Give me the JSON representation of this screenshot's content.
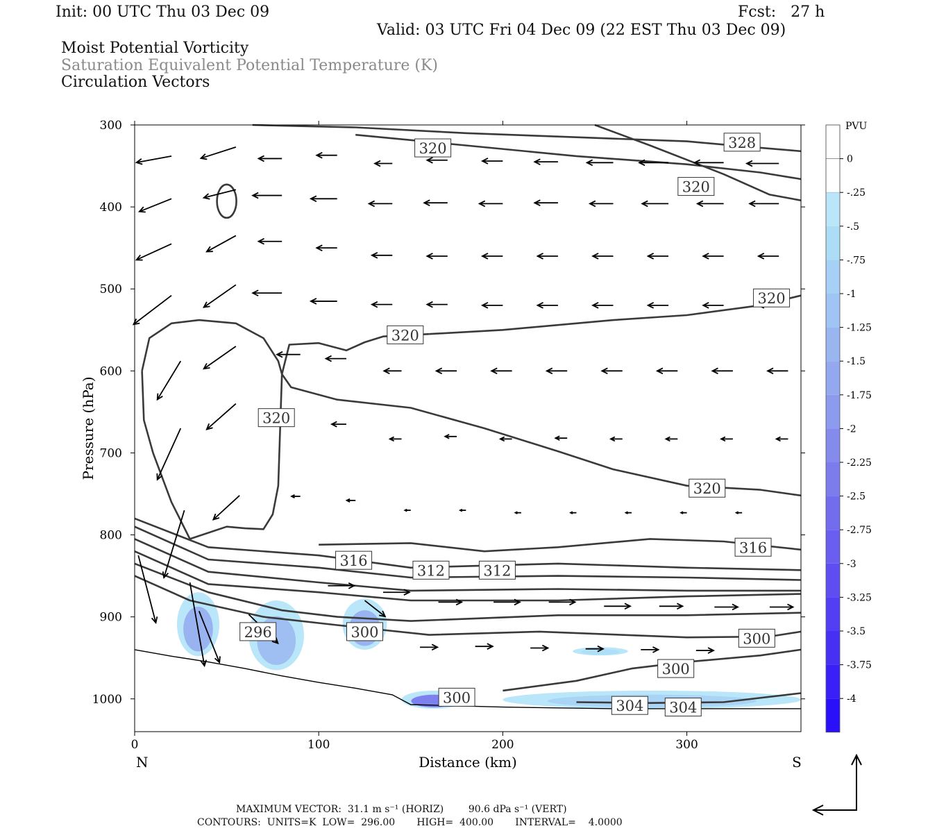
{
  "header": {
    "init": "Init: 00 UTC Thu 03 Dec 09",
    "fcst": "Fcst:   27 h",
    "valid": "Valid: 03 UTC Fri 04 Dec 09 (22 EST Thu 03 Dec 09)",
    "field1": "Moist Potential Vorticity",
    "field2": "Saturation Equivalent Potential Temperature (K)",
    "field3": "Circulation Vectors"
  },
  "footer": {
    "line1": "MAXIMUM VECTOR:  31.1 m s⁻¹ (HORIZ)        90.6 dPa s⁻¹ (VERT)",
    "line2": "CONTOURS:  UNITS=K  LOW=  296.00       HIGH=  400.00       INTERVAL=    4.0000"
  },
  "colorbar": {
    "unit": "PVU",
    "labels": [
      "0",
      "-.25",
      "-.5",
      "-.75",
      "-1",
      "-1.25",
      "-1.5",
      "-1.75",
      "-2",
      "-2.25",
      "-2.5",
      "-2.75",
      "-3",
      "-3.25",
      "-3.5",
      "-3.75",
      "-4"
    ],
    "colors": [
      "#ffffff",
      "#ffffff",
      "#b9e6f8",
      "#addcf7",
      "#a6d0f5",
      "#a0c4f3",
      "#9ab6f1",
      "#93a8ef",
      "#8c9bee",
      "#848bec",
      "#7c7ced",
      "#726ded",
      "#6a5ef0",
      "#5e4df1",
      "#533ff3",
      "#4630f4",
      "#3820f6",
      "#2a10f9"
    ]
  },
  "chart_data": {
    "type": "cross-section",
    "xlabel": "Distance (km)",
    "ylabel": "Pressure (hPa)",
    "x_ticks": [
      0,
      100,
      200,
      300
    ],
    "y_ticks": [
      300,
      400,
      500,
      600,
      700,
      800,
      900,
      1000
    ],
    "xlim": [
      0,
      362
    ],
    "ylim": [
      300,
      1040
    ],
    "end_labels": {
      "left": "N",
      "right": "S"
    },
    "contour_labels": [
      {
        "text": "320",
        "x": 162,
        "p": 328
      },
      {
        "text": "328",
        "x": 330,
        "p": 321
      },
      {
        "text": "320",
        "x": 305,
        "p": 375
      },
      {
        "text": "320",
        "x": 346,
        "p": 511
      },
      {
        "text": "320",
        "x": 147,
        "p": 556
      },
      {
        "text": "320",
        "x": 77,
        "p": 657
      },
      {
        "text": "320",
        "x": 311,
        "p": 743
      },
      {
        "text": "316",
        "x": 119,
        "p": 831
      },
      {
        "text": "312",
        "x": 161,
        "p": 843
      },
      {
        "text": "312",
        "x": 197,
        "p": 843
      },
      {
        "text": "316",
        "x": 336,
        "p": 815
      },
      {
        "text": "296",
        "x": 67,
        "p": 918
      },
      {
        "text": "300",
        "x": 125,
        "p": 918
      },
      {
        "text": "300",
        "x": 338,
        "p": 926
      },
      {
        "text": "300",
        "x": 294,
        "p": 963
      },
      {
        "text": "300",
        "x": 175,
        "p": 998
      },
      {
        "text": "304",
        "x": 269,
        "p": 1008
      },
      {
        "text": "304",
        "x": 298,
        "p": 1010
      }
    ],
    "contours": [
      [
        [
          64,
          300
        ],
        [
          120,
          303
        ],
        [
          180,
          310
        ],
        [
          240,
          315
        ],
        [
          300,
          320
        ],
        [
          330,
          326
        ],
        [
          362,
          332
        ]
      ],
      [
        [
          120,
          312
        ],
        [
          180,
          325
        ],
        [
          240,
          338
        ],
        [
          300,
          348
        ],
        [
          340,
          358
        ],
        [
          362,
          366
        ]
      ],
      [
        [
          250,
          300
        ],
        [
          280,
          325
        ],
        [
          320,
          360
        ],
        [
          345,
          385
        ],
        [
          362,
          392
        ]
      ],
      [
        [
          160,
          555
        ],
        [
          200,
          550
        ],
        [
          260,
          538
        ],
        [
          300,
          532
        ],
        [
          340,
          520
        ],
        [
          362,
          508
        ]
      ],
      [
        [
          4,
          600
        ],
        [
          8,
          560
        ],
        [
          20,
          542
        ],
        [
          35,
          538
        ],
        [
          55,
          542
        ],
        [
          70,
          560
        ],
        [
          78,
          588
        ],
        [
          80,
          604
        ]
      ],
      [
        [
          80,
          604
        ],
        [
          84,
          568
        ],
        [
          100,
          566
        ],
        [
          115,
          575
        ],
        [
          125,
          565
        ],
        [
          135,
          558
        ],
        [
          160,
          555
        ]
      ],
      [
        [
          80,
          604
        ],
        [
          85,
          620
        ],
        [
          110,
          635
        ],
        [
          150,
          645
        ],
        [
          190,
          670
        ],
        [
          230,
          698
        ],
        [
          260,
          720
        ],
        [
          300,
          740
        ],
        [
          340,
          745
        ],
        [
          362,
          752
        ]
      ],
      [
        [
          4,
          600
        ],
        [
          5,
          660
        ],
        [
          10,
          700
        ],
        [
          20,
          760
        ],
        [
          30,
          805
        ],
        [
          50,
          790
        ],
        [
          60,
          792
        ],
        [
          70,
          793
        ],
        [
          75,
          775
        ],
        [
          78,
          740
        ],
        [
          80,
          604
        ]
      ],
      [
        [
          100,
          812
        ],
        [
          150,
          810
        ],
        [
          190,
          820
        ],
        [
          230,
          815
        ],
        [
          280,
          805
        ],
        [
          320,
          808
        ],
        [
          362,
          818
        ]
      ],
      [
        [
          0,
          780
        ],
        [
          40,
          815
        ],
        [
          100,
          825
        ],
        [
          150,
          840
        ],
        [
          230,
          835
        ],
        [
          300,
          840
        ],
        [
          362,
          843
        ]
      ],
      [
        [
          0,
          790
        ],
        [
          40,
          830
        ],
        [
          100,
          840
        ],
        [
          150,
          852
        ],
        [
          230,
          850
        ],
        [
          300,
          852
        ],
        [
          362,
          855
        ]
      ],
      [
        [
          0,
          805
        ],
        [
          40,
          845
        ],
        [
          100,
          858
        ],
        [
          150,
          868
        ],
        [
          230,
          866
        ],
        [
          300,
          868
        ],
        [
          362,
          868
        ]
      ],
      [
        [
          0,
          820
        ],
        [
          40,
          860
        ],
        [
          100,
          870
        ],
        [
          150,
          880
        ],
        [
          230,
          880
        ],
        [
          300,
          875
        ],
        [
          362,
          872
        ]
      ],
      [
        [
          0,
          835
        ],
        [
          40,
          870
        ],
        [
          80,
          892
        ],
        [
          110,
          900
        ],
        [
          150,
          905
        ],
        [
          230,
          898
        ],
        [
          300,
          898
        ],
        [
          362,
          895
        ]
      ],
      [
        [
          0,
          850
        ],
        [
          30,
          880
        ],
        [
          70,
          900
        ],
        [
          110,
          910
        ],
        [
          160,
          922
        ],
        [
          220,
          918
        ],
        [
          300,
          925
        ],
        [
          345,
          924
        ],
        [
          362,
          918
        ]
      ],
      [
        [
          200,
          990
        ],
        [
          240,
          978
        ],
        [
          270,
          963
        ],
        [
          300,
          955
        ],
        [
          340,
          947
        ],
        [
          362,
          940
        ]
      ],
      [
        [
          240,
          1004
        ],
        [
          280,
          1005
        ],
        [
          320,
          1004
        ],
        [
          362,
          993
        ]
      ]
    ],
    "pv_regions": [
      {
        "x0": 23,
        "x1": 46,
        "p0": 870,
        "p1": 948,
        "v": -1.5
      },
      {
        "x0": 62,
        "x1": 92,
        "p0": 880,
        "p1": 965,
        "v": -1.25
      },
      {
        "x0": 113,
        "x1": 137,
        "p0": 878,
        "p1": 940,
        "v": -1.5
      },
      {
        "x0": 145,
        "x1": 180,
        "p0": 990,
        "p1": 1012,
        "v": -2.5
      },
      {
        "x0": 200,
        "x1": 362,
        "p0": 990,
        "p1": 1012,
        "v": -0.75
      },
      {
        "x0": 238,
        "x1": 268,
        "p0": 937,
        "p1": 947,
        "v": -0.5
      }
    ],
    "vectors": [
      {
        "x": 20,
        "p": 338,
        "u": -12,
        "w": -4
      },
      {
        "x": 55,
        "p": 327,
        "u": -12,
        "w": -7
      },
      {
        "x": 80,
        "p": 341,
        "u": -8,
        "w": 0
      },
      {
        "x": 110,
        "p": 337,
        "u": -7,
        "w": 0
      },
      {
        "x": 140,
        "p": 347,
        "u": -6,
        "w": 0
      },
      {
        "x": 170,
        "p": 343,
        "u": -7,
        "w": 0
      },
      {
        "x": 200,
        "p": 344,
        "u": -7,
        "w": 0
      },
      {
        "x": 230,
        "p": 345,
        "u": -8,
        "w": 0
      },
      {
        "x": 260,
        "p": 346,
        "u": -9,
        "w": 0
      },
      {
        "x": 290,
        "p": 346,
        "u": -10,
        "w": 0
      },
      {
        "x": 320,
        "p": 346,
        "u": -10,
        "w": 0
      },
      {
        "x": 350,
        "p": 347,
        "u": -11,
        "w": 0
      },
      {
        "x": 20,
        "p": 390,
        "u": -11,
        "w": -8
      },
      {
        "x": 55,
        "p": 379,
        "u": -11,
        "w": -5
      },
      {
        "x": 80,
        "p": 386,
        "u": -10,
        "w": 0
      },
      {
        "x": 110,
        "p": 390,
        "u": -9,
        "w": 0
      },
      {
        "x": 140,
        "p": 396,
        "u": -8,
        "w": 0
      },
      {
        "x": 170,
        "p": 395,
        "u": -8,
        "w": 0
      },
      {
        "x": 200,
        "p": 396,
        "u": -8,
        "w": 0
      },
      {
        "x": 230,
        "p": 395,
        "u": -8,
        "w": 0
      },
      {
        "x": 260,
        "p": 396,
        "u": -8,
        "w": 0
      },
      {
        "x": 290,
        "p": 396,
        "u": -9,
        "w": 0
      },
      {
        "x": 320,
        "p": 396,
        "u": -9,
        "w": 0
      },
      {
        "x": 350,
        "p": 396,
        "u": -10,
        "w": 0
      },
      {
        "x": 20,
        "p": 445,
        "u": -12,
        "w": -10
      },
      {
        "x": 55,
        "p": 435,
        "u": -10,
        "w": -10
      },
      {
        "x": 80,
        "p": 442,
        "u": -8,
        "w": 0
      },
      {
        "x": 110,
        "p": 450,
        "u": -7,
        "w": 0
      },
      {
        "x": 140,
        "p": 459,
        "u": -7,
        "w": 0
      },
      {
        "x": 170,
        "p": 460,
        "u": -7,
        "w": 0
      },
      {
        "x": 200,
        "p": 460,
        "u": -7,
        "w": 0
      },
      {
        "x": 230,
        "p": 460,
        "u": -7,
        "w": 0
      },
      {
        "x": 260,
        "p": 460,
        "u": -7,
        "w": 0
      },
      {
        "x": 290,
        "p": 460,
        "u": -7,
        "w": 0
      },
      {
        "x": 320,
        "p": 460,
        "u": -7,
        "w": 0
      },
      {
        "x": 350,
        "p": 460,
        "u": -7,
        "w": 0
      },
      {
        "x": 20,
        "p": 508,
        "u": -13,
        "w": -18
      },
      {
        "x": 55,
        "p": 495,
        "u": -11,
        "w": -14
      },
      {
        "x": 80,
        "p": 505,
        "u": -10,
        "w": 0
      },
      {
        "x": 110,
        "p": 515,
        "u": -9,
        "w": 0
      },
      {
        "x": 140,
        "p": 519,
        "u": -7,
        "w": 0
      },
      {
        "x": 170,
        "p": 519,
        "u": -7,
        "w": 0
      },
      {
        "x": 200,
        "p": 520,
        "u": -7,
        "w": 0
      },
      {
        "x": 230,
        "p": 520,
        "u": -7,
        "w": 0
      },
      {
        "x": 260,
        "p": 520,
        "u": -7,
        "w": 0
      },
      {
        "x": 290,
        "p": 520,
        "u": -7,
        "w": 0
      },
      {
        "x": 320,
        "p": 520,
        "u": -7,
        "w": 0
      },
      {
        "x": 350,
        "p": 520,
        "u": -7,
        "w": 0
      },
      {
        "x": 25,
        "p": 588,
        "u": -8,
        "w": -24
      },
      {
        "x": 55,
        "p": 570,
        "u": -11,
        "w": -14
      },
      {
        "x": 90,
        "p": 580,
        "u": -8,
        "w": 0
      },
      {
        "x": 115,
        "p": 585,
        "u": -7,
        "w": 0
      },
      {
        "x": 145,
        "p": 600,
        "u": -6,
        "w": 0
      },
      {
        "x": 175,
        "p": 600,
        "u": -7,
        "w": 0
      },
      {
        "x": 205,
        "p": 600,
        "u": -7,
        "w": 0
      },
      {
        "x": 235,
        "p": 600,
        "u": -7,
        "w": 0
      },
      {
        "x": 265,
        "p": 600,
        "u": -7,
        "w": 0
      },
      {
        "x": 295,
        "p": 600,
        "u": -7,
        "w": 0
      },
      {
        "x": 325,
        "p": 600,
        "u": -7,
        "w": 0
      },
      {
        "x": 355,
        "p": 600,
        "u": -7,
        "w": 0
      },
      {
        "x": 25,
        "p": 670,
        "u": -8,
        "w": -32
      },
      {
        "x": 55,
        "p": 640,
        "u": -10,
        "w": -16
      },
      {
        "x": 85,
        "p": 660,
        "u": -5,
        "w": 0
      },
      {
        "x": 115,
        "p": 665,
        "u": -5,
        "w": 0
      },
      {
        "x": 145,
        "p": 683,
        "u": -4,
        "w": 0
      },
      {
        "x": 175,
        "p": 680,
        "u": -4,
        "w": 0
      },
      {
        "x": 205,
        "p": 683,
        "u": -4,
        "w": 0
      },
      {
        "x": 235,
        "p": 682,
        "u": -4,
        "w": 0
      },
      {
        "x": 265,
        "p": 683,
        "u": -4,
        "w": 0
      },
      {
        "x": 295,
        "p": 683,
        "u": -4,
        "w": 0
      },
      {
        "x": 325,
        "p": 683,
        "u": -4,
        "w": 0
      },
      {
        "x": 355,
        "p": 683,
        "u": -4,
        "w": 0
      },
      {
        "x": 27,
        "p": 770,
        "u": -7,
        "w": -42
      },
      {
        "x": 57,
        "p": 752,
        "u": -9,
        "w": -15
      },
      {
        "x": 90,
        "p": 753,
        "u": -3,
        "w": 0
      },
      {
        "x": 120,
        "p": 758,
        "u": -3,
        "w": 0
      },
      {
        "x": 150,
        "p": 770,
        "u": -2,
        "w": 0
      },
      {
        "x": 180,
        "p": 770,
        "u": -2,
        "w": 0
      },
      {
        "x": 210,
        "p": 773,
        "u": -2,
        "w": 0
      },
      {
        "x": 240,
        "p": 773,
        "u": -2,
        "w": 0
      },
      {
        "x": 270,
        "p": 773,
        "u": -2,
        "w": 0
      },
      {
        "x": 300,
        "p": 773,
        "u": -2,
        "w": 0
      },
      {
        "x": 330,
        "p": 773,
        "u": -2,
        "w": 0
      },
      {
        "x": 30,
        "p": 858,
        "u": 5,
        "w": -52
      },
      {
        "x": 35,
        "p": 893,
        "u": 7,
        "w": -32
      },
      {
        "x": 2,
        "p": 825,
        "u": 6,
        "w": -42
      },
      {
        "x": 62,
        "p": 897,
        "u": 10,
        "w": -18
      },
      {
        "x": 125,
        "p": 880,
        "u": 7,
        "w": -10
      },
      {
        "x": 105,
        "p": 862,
        "u": 9,
        "w": 0
      },
      {
        "x": 135,
        "p": 870,
        "u": 9,
        "w": 0
      },
      {
        "x": 165,
        "p": 882,
        "u": 8,
        "w": 0
      },
      {
        "x": 195,
        "p": 882,
        "u": 9,
        "w": 0
      },
      {
        "x": 225,
        "p": 882,
        "u": 9,
        "w": 0
      },
      {
        "x": 255,
        "p": 887,
        "u": 9,
        "w": 0
      },
      {
        "x": 285,
        "p": 887,
        "u": 8,
        "w": 0
      },
      {
        "x": 315,
        "p": 888,
        "u": 8,
        "w": 0
      },
      {
        "x": 345,
        "p": 888,
        "u": 8,
        "w": 0
      },
      {
        "x": 155,
        "p": 937,
        "u": 6,
        "w": 0
      },
      {
        "x": 185,
        "p": 936,
        "u": 6,
        "w": 0
      },
      {
        "x": 215,
        "p": 938,
        "u": 6,
        "w": 0
      },
      {
        "x": 245,
        "p": 939,
        "u": 6,
        "w": 0
      },
      {
        "x": 275,
        "p": 940,
        "u": 6,
        "w": 0
      },
      {
        "x": 305,
        "p": 941,
        "u": 6,
        "w": 0
      }
    ],
    "terrain": [
      [
        0,
        940
      ],
      [
        20,
        948
      ],
      [
        40,
        955
      ],
      [
        60,
        963
      ],
      [
        80,
        972
      ],
      [
        100,
        980
      ],
      [
        120,
        987
      ],
      [
        140,
        995
      ],
      [
        150,
        1007
      ],
      [
        200,
        1010
      ],
      [
        260,
        1012
      ],
      [
        362,
        1012
      ]
    ],
    "legend_vectors": {
      "horizontal": "31.1 m s-1",
      "vertical": "90.6 dPa s-1"
    }
  }
}
